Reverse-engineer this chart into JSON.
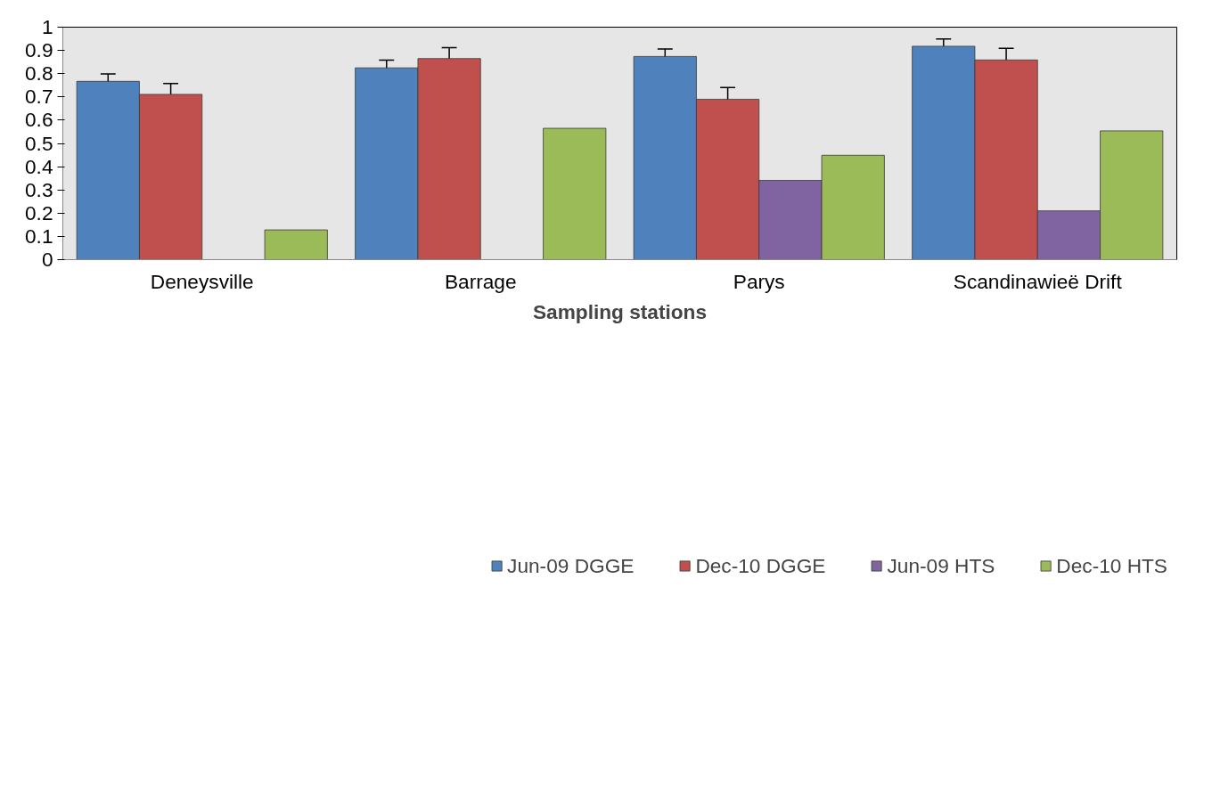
{
  "chart_data": {
    "type": "bar",
    "xlabel": "Sampling stations",
    "categories": [
      "Deneysville",
      "Barrage",
      "Parys",
      "Scandinawieë Drift"
    ],
    "series": [
      {
        "name": "Jun-09 DGGE",
        "color": "#4f81bd",
        "values": [
          0.767,
          0.825,
          0.874,
          0.918
        ],
        "errors": [
          0.032,
          0.033,
          0.032,
          0.031
        ]
      },
      {
        "name": "Dec-10 DGGE",
        "color": "#c0504d",
        "values": [
          0.711,
          0.865,
          0.69,
          0.859
        ],
        "errors": [
          0.047,
          0.047,
          0.05,
          0.05
        ]
      },
      {
        "name": "Jun-09 HTS",
        "color": "#8064a2",
        "values": [
          null,
          null,
          0.341,
          0.21
        ]
      },
      {
        "name": "Dec-10 HTS",
        "color": "#9bbb59",
        "values": [
          0.128,
          0.565,
          0.449,
          0.554
        ]
      }
    ],
    "ylim": [
      0,
      1
    ],
    "yticks": [
      0,
      0.1,
      0.2,
      0.3,
      0.4,
      0.5,
      0.6,
      0.7,
      0.8,
      0.9,
      1
    ],
    "grid": false,
    "legend": "bottom"
  }
}
